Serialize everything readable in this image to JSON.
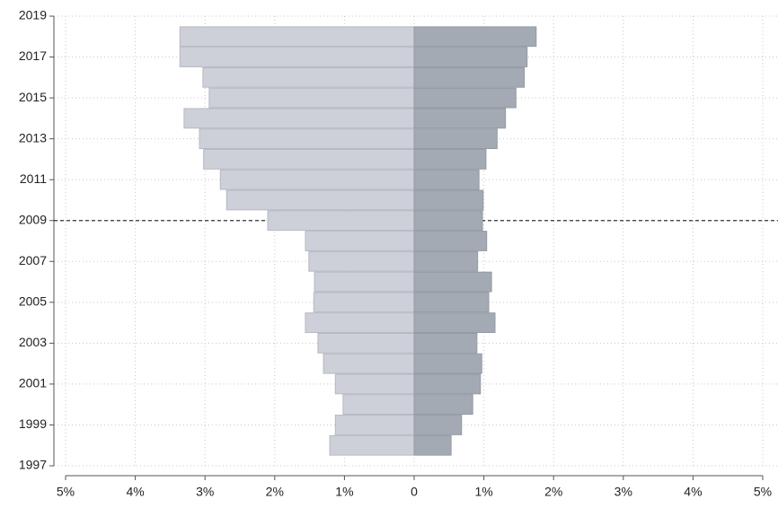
{
  "chart_data": {
    "type": "butterfly-bar",
    "orientation": "horizontal",
    "x": [
      2018,
      2017,
      2016,
      2015,
      2014,
      2013,
      2012,
      2011,
      2010,
      2009,
      2008,
      2007,
      2006,
      2005,
      2004,
      2003,
      2002,
      2001,
      2000,
      1999,
      1998
    ],
    "series": [
      {
        "color": "#cdd0d8",
        "values": [
          -3.36,
          -3.36,
          -3.03,
          -2.94,
          -3.3,
          -3.08,
          -3.02,
          -2.78,
          -2.69,
          -2.1,
          -1.56,
          -1.51,
          -1.43,
          -1.44,
          -1.56,
          -1.38,
          -1.3,
          -1.13,
          -1.02,
          -1.13,
          -1.21
        ]
      },
      {
        "color": "#a4aab3",
        "values": [
          1.75,
          1.62,
          1.58,
          1.46,
          1.31,
          1.19,
          1.03,
          0.93,
          0.99,
          0.98,
          1.04,
          0.91,
          1.11,
          1.07,
          1.16,
          0.9,
          0.97,
          0.95,
          0.84,
          0.68,
          0.53
        ]
      }
    ],
    "xlim": [
      -5,
      5
    ],
    "xticks": [
      {
        "value": -5,
        "label": "5%"
      },
      {
        "value": -4,
        "label": "4%"
      },
      {
        "value": -3,
        "label": "3%"
      },
      {
        "value": -2,
        "label": "2%"
      },
      {
        "value": -1,
        "label": "1%"
      },
      0,
      {
        "value": 1,
        "label": "1%"
      },
      {
        "value": 2,
        "label": "2%"
      },
      {
        "value": 3,
        "label": "3%"
      },
      {
        "value": 4,
        "label": "4%"
      },
      {
        "value": 5,
        "label": "5%"
      }
    ],
    "ylim": [
      1997,
      2019
    ],
    "yticks": [
      1997,
      1999,
      2001,
      2003,
      2005,
      2007,
      2009,
      2011,
      2013,
      2015,
      2017,
      2019
    ],
    "reference_line": 2009,
    "grid": true
  }
}
